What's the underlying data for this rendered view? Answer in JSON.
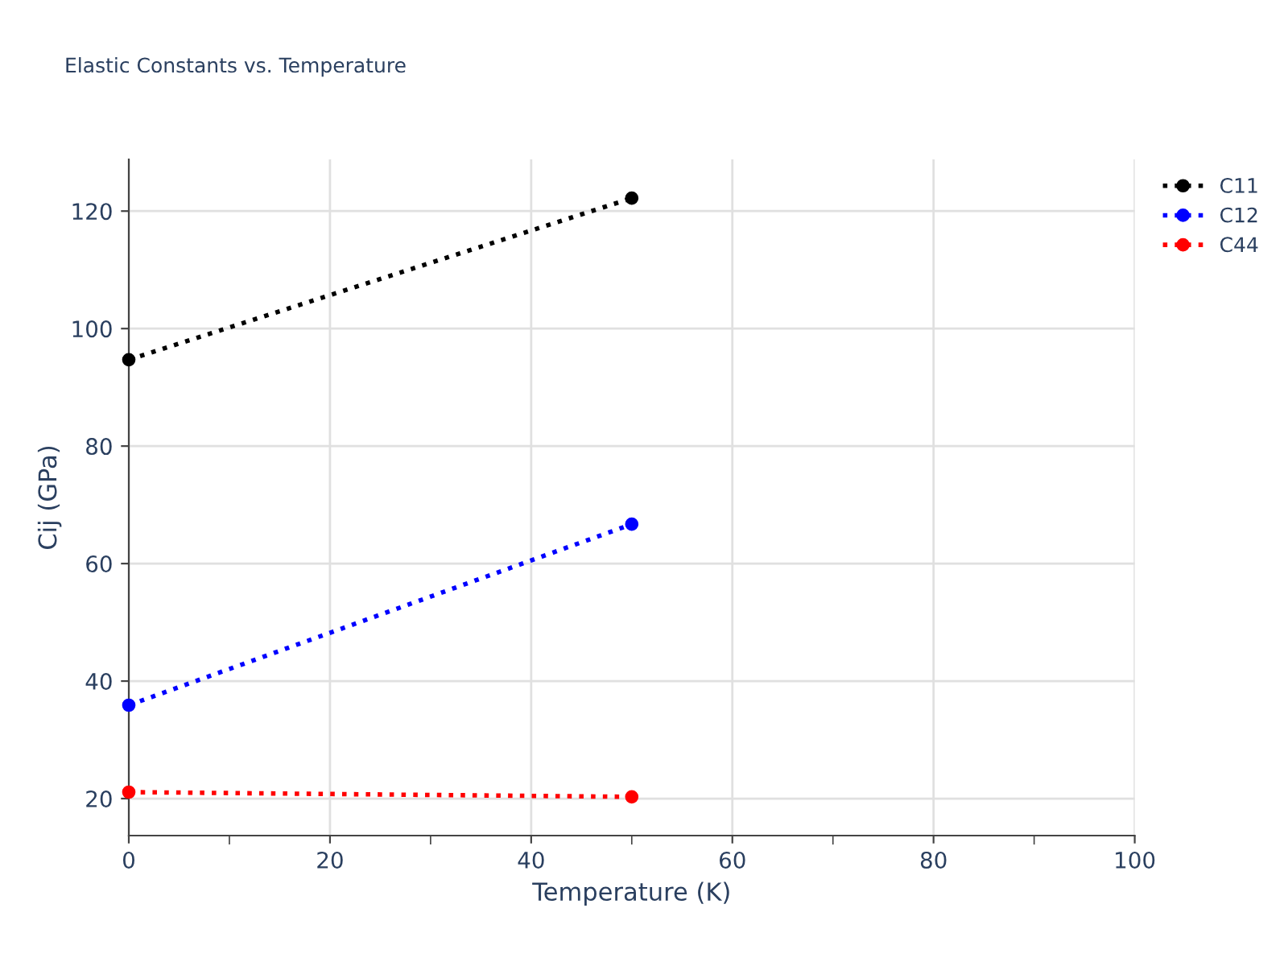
{
  "chart_data": {
    "type": "line",
    "title": "Elastic Constants vs. Temperature",
    "xlabel": "Temperature (K)",
    "ylabel": "Cij (GPa)",
    "x": [
      0,
      50
    ],
    "series": [
      {
        "name": "C11",
        "color": "#000000",
        "values": [
          94.7,
          122.2
        ]
      },
      {
        "name": "C12",
        "color": "#0000ff",
        "values": [
          35.9,
          66.7
        ]
      },
      {
        "name": "C44",
        "color": "#ff0000",
        "values": [
          21.1,
          20.3
        ]
      }
    ],
    "xlim": [
      0,
      100
    ],
    "xticks": [
      0,
      20,
      40,
      60,
      80,
      100
    ],
    "ylim": [
      13.7,
      128.8
    ],
    "yticks": [
      20,
      40,
      60,
      80,
      100,
      120
    ],
    "grid": true,
    "legend": "top right",
    "marker": "circle",
    "line_style": "dotted"
  }
}
